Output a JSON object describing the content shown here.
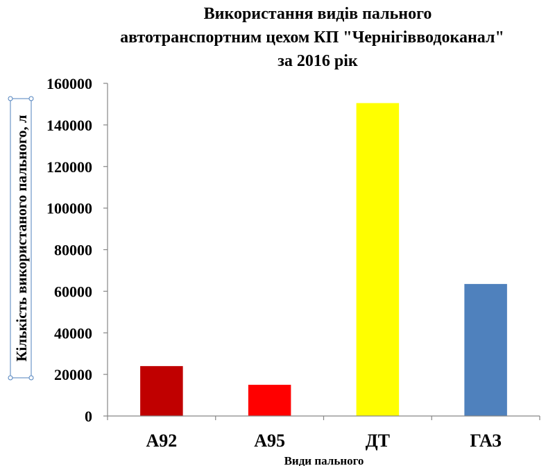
{
  "chart_data": {
    "type": "bar",
    "title_lines": [
      "Використання видів пального",
      "автотранспортним цехом КП \"Чернігівводоканал\"",
      "за 2016 рік"
    ],
    "xlabel": "Види пального",
    "ylabel": "Кількість використаного пального, л",
    "categories": [
      "А92",
      "А95",
      "ДТ",
      "ГАЗ"
    ],
    "values": [
      24000,
      15000,
      150500,
      63500
    ],
    "colors": [
      "#c00000",
      "#ff0000",
      "#ffff00",
      "#4f81bd"
    ],
    "ylim": [
      0,
      160000
    ],
    "yticks": [
      "0",
      "20000",
      "40000",
      "60000",
      "80000",
      "100000",
      "120000",
      "140000",
      "160000"
    ],
    "grid": false,
    "legend": "none"
  }
}
